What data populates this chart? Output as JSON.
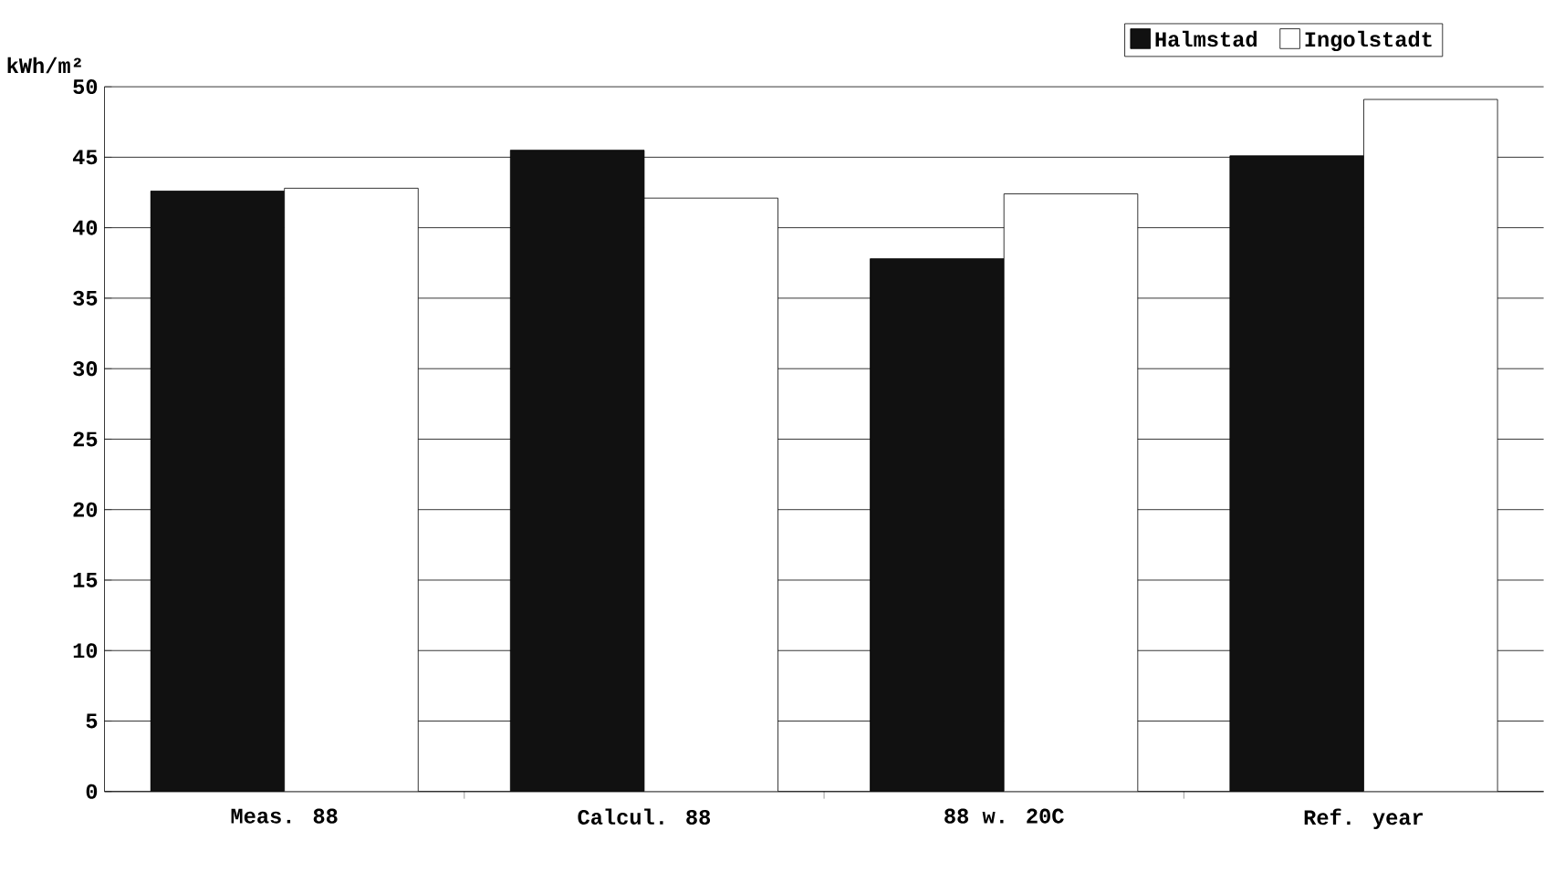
{
  "chart_data": {
    "type": "bar",
    "ylabel": "kWh/m²",
    "categories": [
      "Meas. 88",
      "Calcul. 88",
      "88 w. 20C",
      "Ref. year"
    ],
    "series": [
      {
        "name": "Halmstad",
        "color": "#111111",
        "values": [
          42.6,
          45.5,
          37.8,
          45.1
        ]
      },
      {
        "name": "Ingolstadt",
        "color": "#ffffff",
        "values": [
          42.8,
          42.1,
          42.4,
          49.1
        ]
      }
    ],
    "ylim": [
      0,
      50
    ],
    "yticks": [
      0,
      5,
      10,
      15,
      20,
      25,
      30,
      35,
      40,
      45,
      50
    ],
    "grid": "y",
    "legend": "top right"
  }
}
